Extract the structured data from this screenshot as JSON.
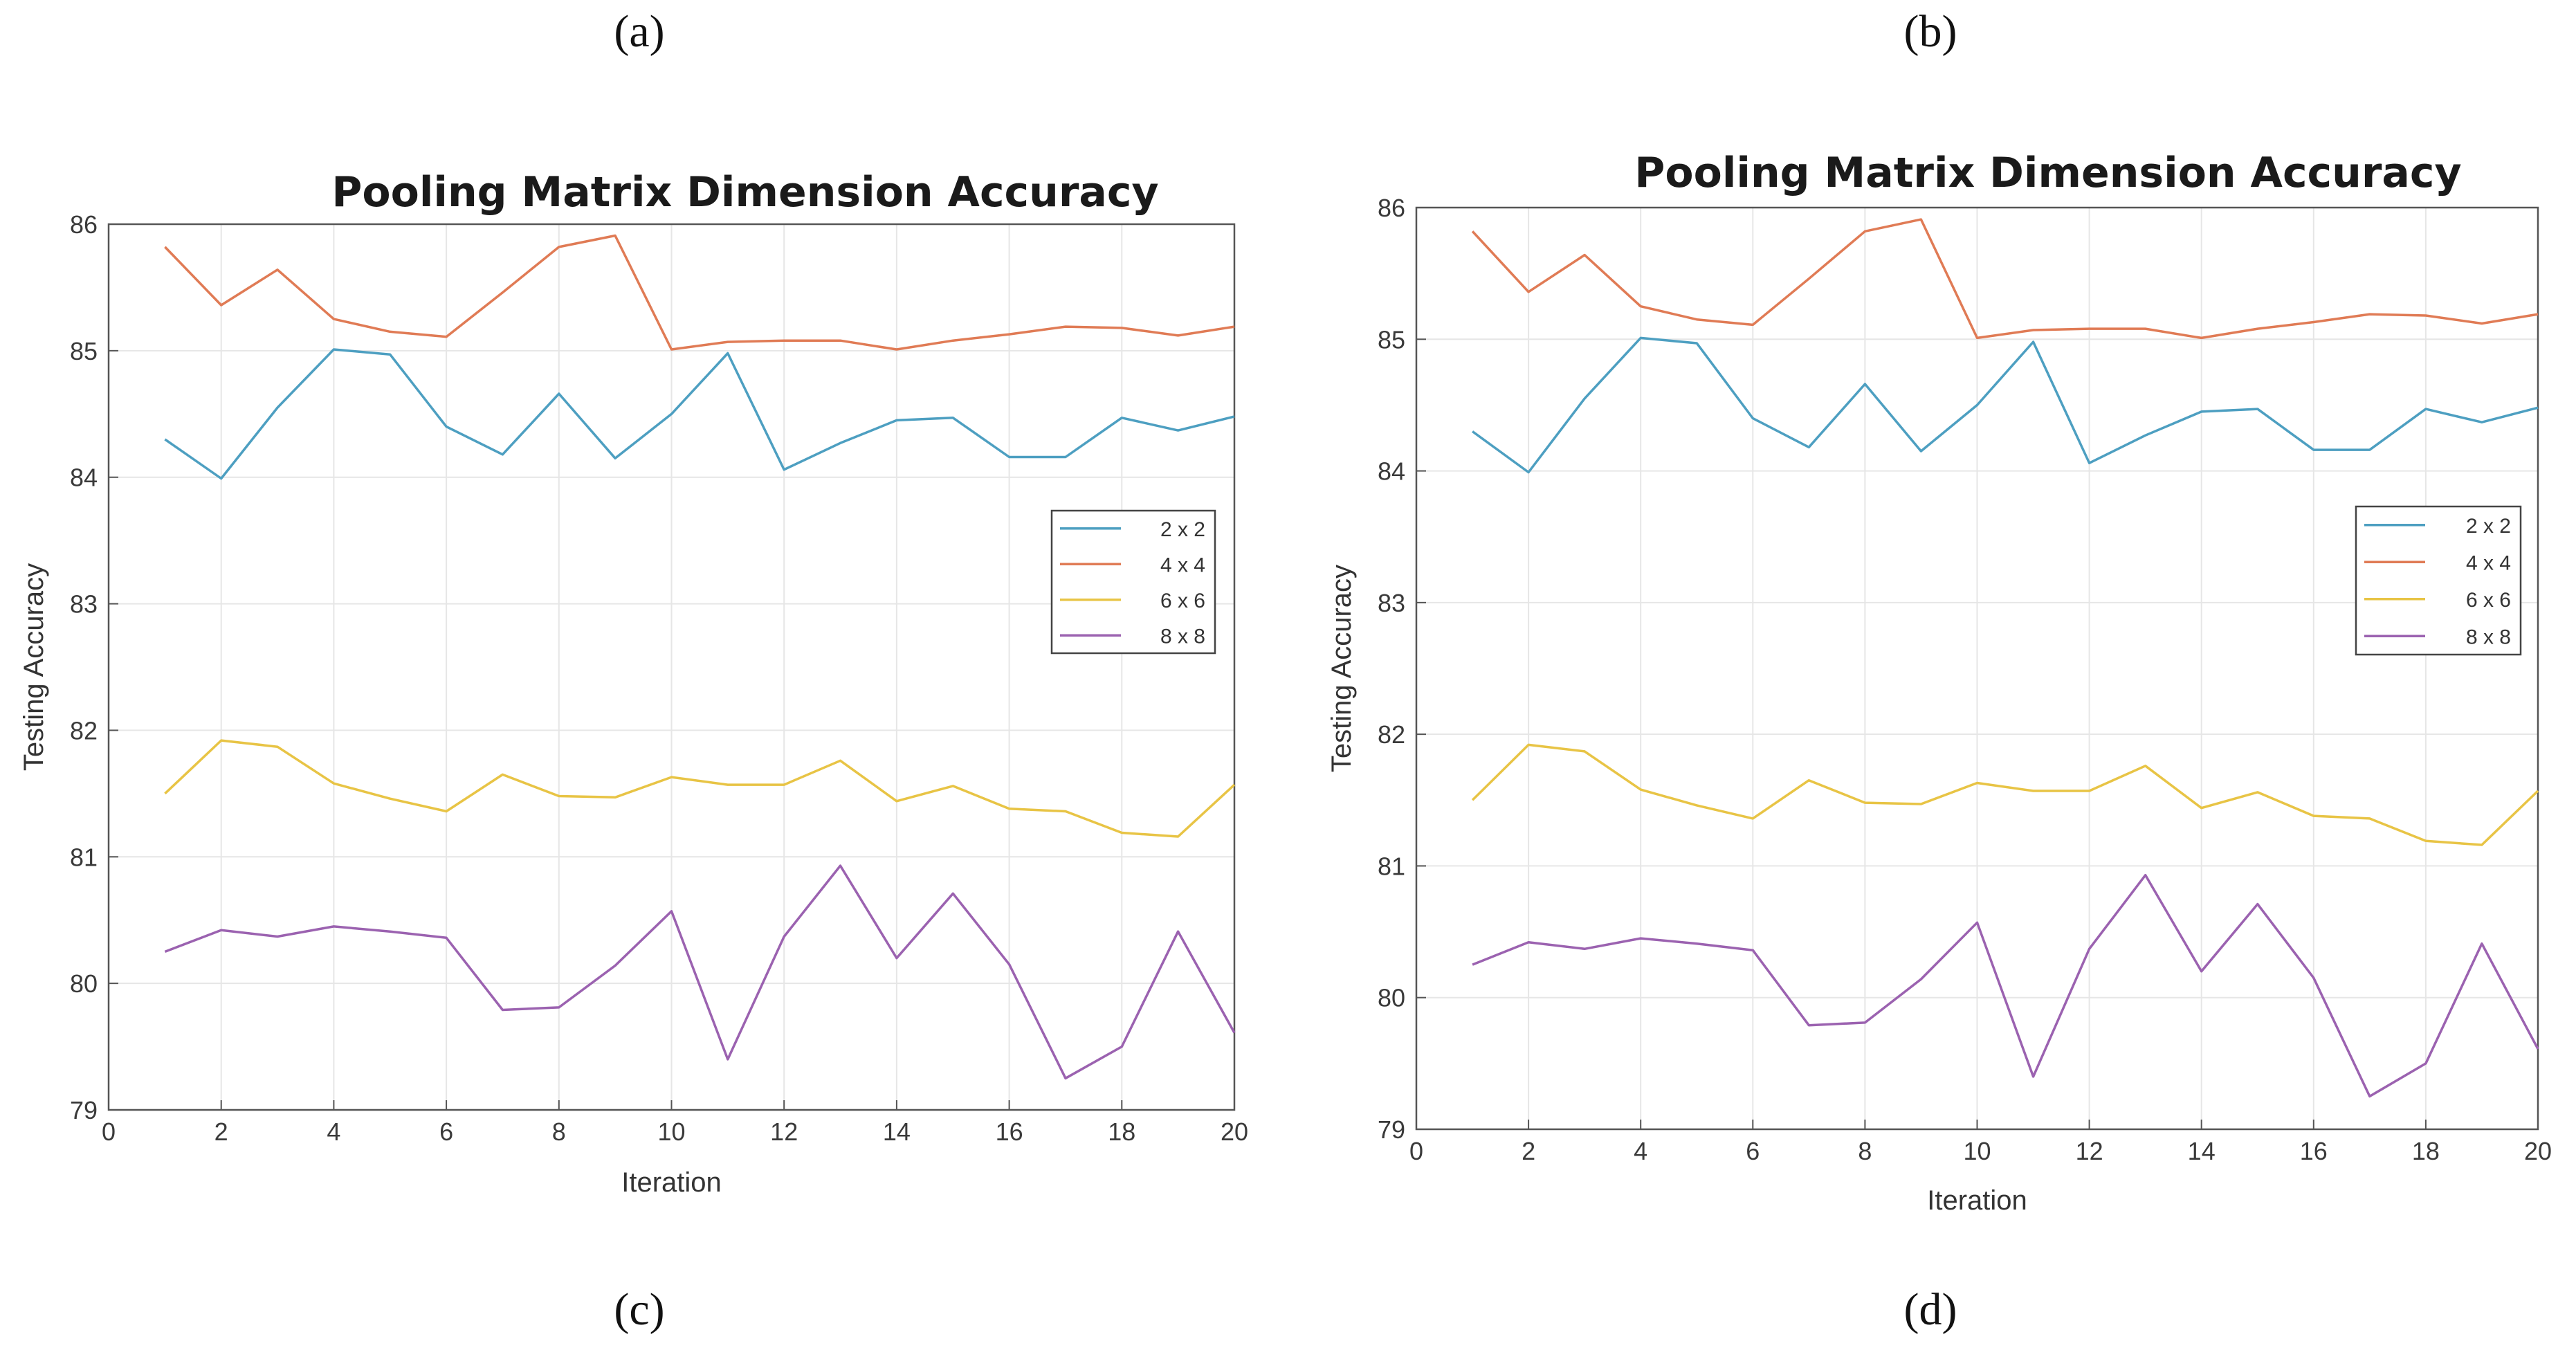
{
  "labels": {
    "a": "(a)",
    "b": "(b)",
    "c": "(c)",
    "d": "(d)"
  },
  "chart_data": [
    {
      "id": "left",
      "type": "line",
      "title": "Pooling Matrix Dimension Accuracy",
      "xlabel": "Iteration",
      "ylabel": "Testing Accuracy",
      "xlim": [
        0,
        20
      ],
      "ylim": [
        79,
        86
      ],
      "xticks": [
        0,
        2,
        4,
        6,
        8,
        10,
        12,
        14,
        16,
        18,
        20
      ],
      "yticks": [
        79,
        80,
        81,
        82,
        83,
        84,
        85,
        86
      ],
      "grid": true,
      "legend_position": "right",
      "x": [
        1,
        2,
        3,
        4,
        5,
        6,
        7,
        8,
        9,
        10,
        11,
        12,
        13,
        14,
        15,
        16,
        17,
        18,
        19,
        20
      ],
      "series": [
        {
          "name": "2 x 2",
          "color": "#4d9fc1",
          "values": [
            84.3,
            83.99,
            84.55,
            85.01,
            84.97,
            84.4,
            84.18,
            84.66,
            84.15,
            84.5,
            84.98,
            84.06,
            84.27,
            84.45,
            84.47,
            84.16,
            84.16,
            84.47,
            84.37,
            84.48
          ]
        },
        {
          "name": "4 x 4",
          "color": "#e07b55",
          "values": [
            85.82,
            85.36,
            85.64,
            85.25,
            85.15,
            85.11,
            85.46,
            85.82,
            85.91,
            85.01,
            85.07,
            85.08,
            85.08,
            85.01,
            85.08,
            85.13,
            85.19,
            85.18,
            85.12,
            85.19
          ]
        },
        {
          "name": "6 x 6",
          "color": "#e8c445",
          "values": [
            81.5,
            81.92,
            81.87,
            81.58,
            81.46,
            81.36,
            81.65,
            81.48,
            81.47,
            81.63,
            81.57,
            81.57,
            81.76,
            81.44,
            81.56,
            81.38,
            81.36,
            81.19,
            81.16,
            81.57
          ]
        },
        {
          "name": "8 x 8",
          "color": "#9b62b0",
          "values": [
            80.25,
            80.42,
            80.37,
            80.45,
            80.41,
            80.36,
            79.79,
            79.81,
            80.14,
            80.57,
            79.4,
            80.37,
            80.93,
            80.2,
            80.71,
            80.15,
            79.25,
            79.5,
            80.41,
            79.61
          ]
        }
      ]
    },
    {
      "id": "right",
      "type": "line",
      "title": "Pooling Matrix Dimension Accuracy",
      "xlabel": "Iteration",
      "ylabel": "Testing Accuracy",
      "xlim": [
        0,
        20
      ],
      "ylim": [
        79,
        86
      ],
      "xticks": [
        0,
        2,
        4,
        6,
        8,
        10,
        12,
        14,
        16,
        18,
        20
      ],
      "yticks": [
        79,
        80,
        81,
        82,
        83,
        84,
        85,
        86
      ],
      "grid": true,
      "legend_position": "right",
      "x": [
        1,
        2,
        3,
        4,
        5,
        6,
        7,
        8,
        9,
        10,
        11,
        12,
        13,
        14,
        15,
        16,
        17,
        18,
        19,
        20
      ],
      "series": [
        {
          "name": "2 x 2",
          "color": "#4d9fc1",
          "values": [
            84.3,
            83.99,
            84.55,
            85.01,
            84.97,
            84.4,
            84.18,
            84.66,
            84.15,
            84.5,
            84.98,
            84.06,
            84.27,
            84.45,
            84.47,
            84.16,
            84.16,
            84.47,
            84.37,
            84.48
          ]
        },
        {
          "name": "4 x 4",
          "color": "#e07b55",
          "values": [
            85.82,
            85.36,
            85.64,
            85.25,
            85.15,
            85.11,
            85.46,
            85.82,
            85.91,
            85.01,
            85.07,
            85.08,
            85.08,
            85.01,
            85.08,
            85.13,
            85.19,
            85.18,
            85.12,
            85.19
          ]
        },
        {
          "name": "6 x 6",
          "color": "#e8c445",
          "values": [
            81.5,
            81.92,
            81.87,
            81.58,
            81.46,
            81.36,
            81.65,
            81.48,
            81.47,
            81.63,
            81.57,
            81.57,
            81.76,
            81.44,
            81.56,
            81.38,
            81.36,
            81.19,
            81.16,
            81.57
          ]
        },
        {
          "name": "8 x 8",
          "color": "#9b62b0",
          "values": [
            80.25,
            80.42,
            80.37,
            80.45,
            80.41,
            80.36,
            79.79,
            79.81,
            80.14,
            80.57,
            79.4,
            80.37,
            80.93,
            80.2,
            80.71,
            80.15,
            79.25,
            79.5,
            80.41,
            79.61
          ]
        }
      ]
    }
  ]
}
